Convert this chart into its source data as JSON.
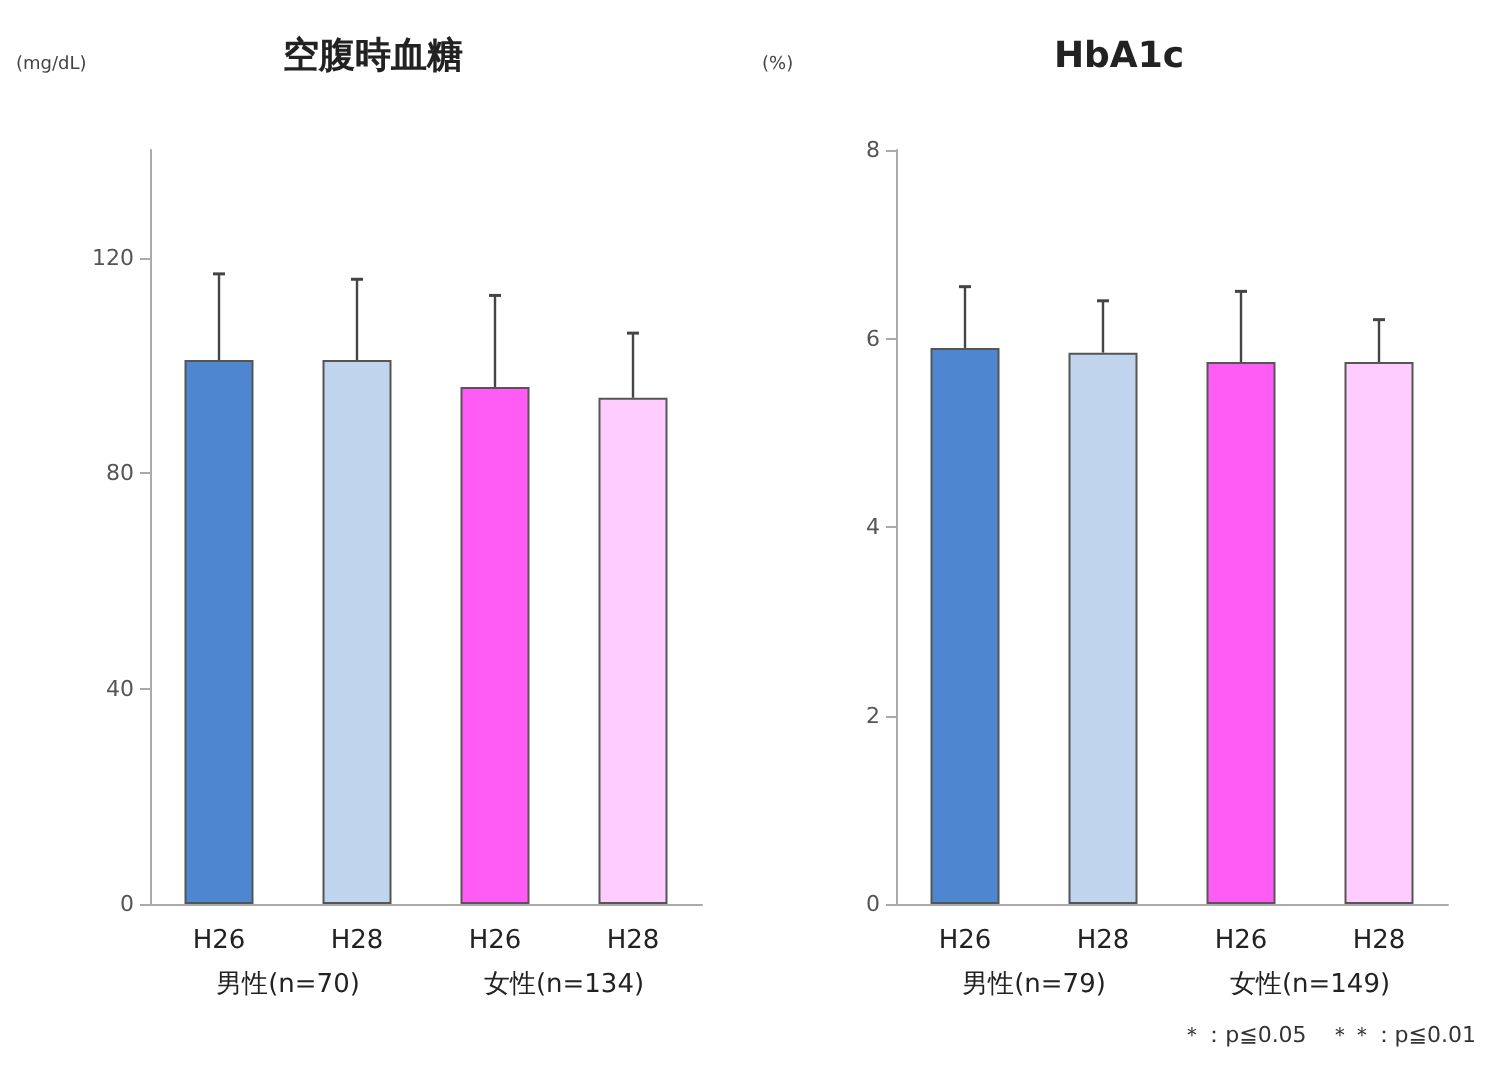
{
  "chart_data": [
    {
      "type": "bar",
      "title": "空腹時血糖",
      "ylabel": "(mg/dL)",
      "categories": [
        "H26",
        "H28",
        "H26",
        "H28"
      ],
      "values": [
        101,
        101,
        96,
        94
      ],
      "colors": [
        "#4f86d0",
        "#c0d4ee",
        "#ff5cf6",
        "#ffccff"
      ],
      "errors": [
        [
          101,
          117
        ],
        [
          101,
          116
        ],
        [
          96,
          113
        ],
        [
          94,
          106
        ]
      ],
      "ylim": [
        0,
        140
      ],
      "yticks": [
        0,
        40,
        80,
        120
      ],
      "grid": false,
      "annotations": [
        "男性(n=70)",
        "女性(n=134)"
      ]
    },
    {
      "type": "bar",
      "title": "HbA1c",
      "ylabel": "(%)",
      "categories": [
        "H26",
        "H28",
        "H26",
        "H28"
      ],
      "values": [
        5.9,
        5.85,
        5.75,
        5.75
      ],
      "colors": [
        "#4f86d0",
        "#c0d4ee",
        "#ff5cf6",
        "#ffccff"
      ],
      "errors": [
        [
          5.9,
          6.55
        ],
        [
          5.85,
          6.4
        ],
        [
          5.75,
          6.5
        ],
        [
          5.75,
          6.2
        ]
      ],
      "ylim": [
        0,
        8
      ],
      "yticks": [
        0,
        2,
        4,
        6,
        8
      ],
      "grid": false,
      "annotations": [
        "男性(n=79)",
        "女性(n=149)",
        "＊：p≦0.05　＊＊：p≦0.01"
      ]
    }
  ]
}
